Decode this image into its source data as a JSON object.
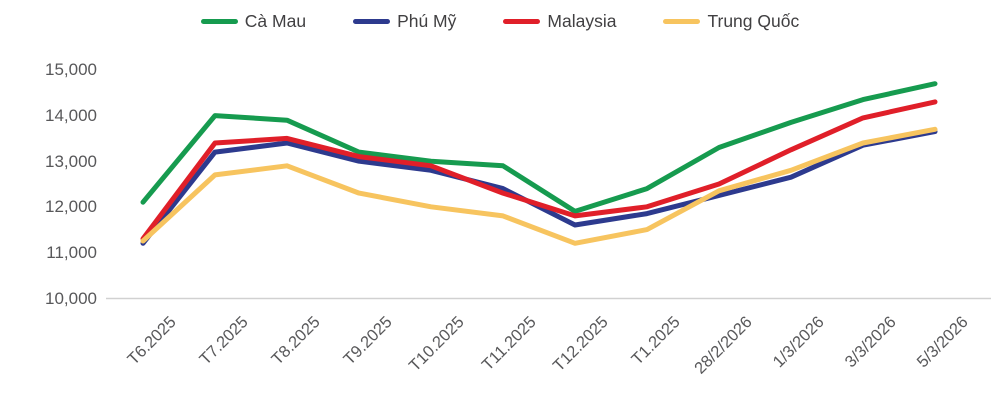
{
  "legend": {
    "items": [
      {
        "label": "Cà Mau",
        "color": "#169b4f"
      },
      {
        "label": "Phú Mỹ",
        "color": "#2d3a8e"
      },
      {
        "label": "Malaysia",
        "color": "#e01f29"
      },
      {
        "label": "Trung Quốc",
        "color": "#f7c45f"
      }
    ]
  },
  "chart_data": {
    "type": "line",
    "x": [
      "T6.2025",
      "T7.2025",
      "T8.2025",
      "T9.2025",
      "T10.2025",
      "T11.2025",
      "T12.2025",
      "T1.2025",
      "28/2/2026",
      "1/3/2026",
      "3/3/2026",
      "5/3/2026"
    ],
    "y_ticks": [
      "15,000",
      "14,000",
      "13,000",
      "12,000",
      "11,000",
      "10,000"
    ],
    "ylim": [
      10000,
      15000
    ],
    "grid": false,
    "legend_position": "top",
    "axis_line_color": "#d1d1d1",
    "tick_text_color": "#58585a",
    "series": [
      {
        "name": "Cà Mau",
        "color": "#169b4f",
        "values": [
          12100,
          14000,
          13900,
          13200,
          13000,
          12900,
          11900,
          12400,
          13300,
          13850,
          14350,
          14700
        ]
      },
      {
        "name": "Phú Mỹ",
        "color": "#2d3a8e",
        "values": [
          11200,
          13200,
          13400,
          13000,
          12800,
          12400,
          11600,
          11850,
          12250,
          12650,
          13350,
          13650
        ]
      },
      {
        "name": "Malaysia",
        "color": "#e01f29",
        "values": [
          11300,
          13400,
          13500,
          13100,
          12900,
          12300,
          11800,
          12000,
          12500,
          13250,
          13950,
          14300
        ]
      },
      {
        "name": "Trung Quốc",
        "color": "#f7c45f",
        "values": [
          11250,
          12700,
          12900,
          12300,
          12000,
          11800,
          11200,
          11500,
          12350,
          12800,
          13400,
          13700
        ]
      }
    ]
  }
}
